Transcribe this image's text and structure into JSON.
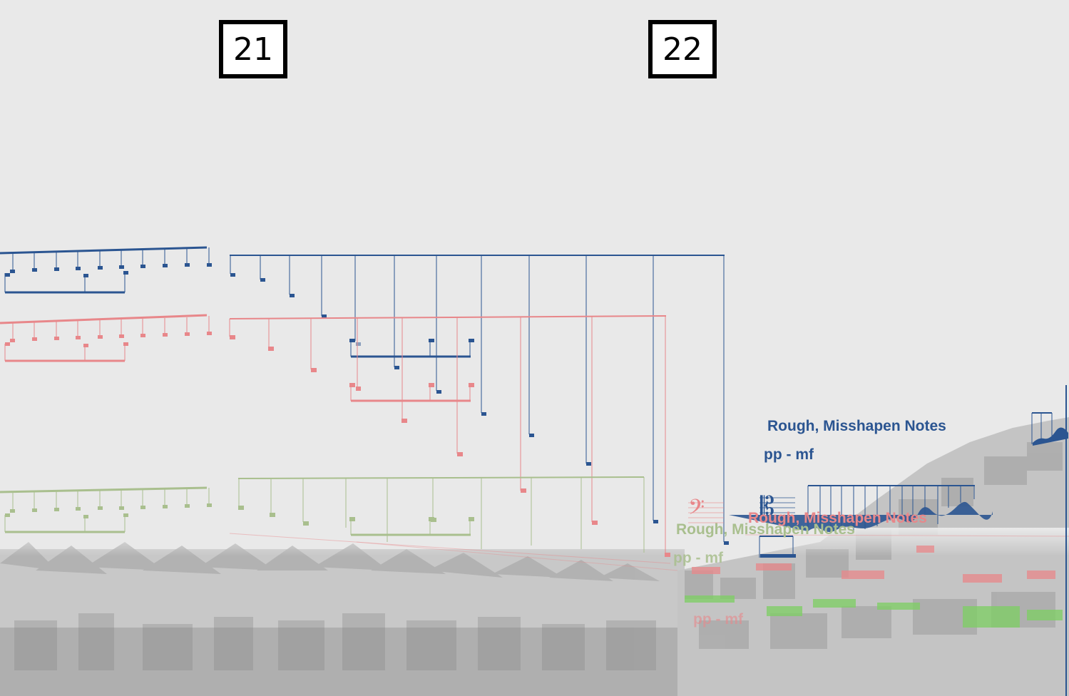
{
  "rehearsal_marks": [
    "21",
    "22"
  ],
  "annotations": {
    "blue_technique": "Rough, Misshapen Notes",
    "blue_dynamic": "pp - mf",
    "red_technique": "Rough, Misshapen Notes",
    "green_technique": "Rough, Misshapen Notes",
    "green_dynamic": "pp - mf",
    "red_dynamic": "pp - mf"
  },
  "colors": {
    "background": "#e9e9e9",
    "voice_blue": "#2b5591",
    "voice_red": "#e8878a",
    "voice_green": "#a9bf8e",
    "photo_gray": "#bdbdbd"
  },
  "clefs": {
    "red_clef": "bass-clef-icon",
    "blue_clef": "alto-clef-icon"
  }
}
